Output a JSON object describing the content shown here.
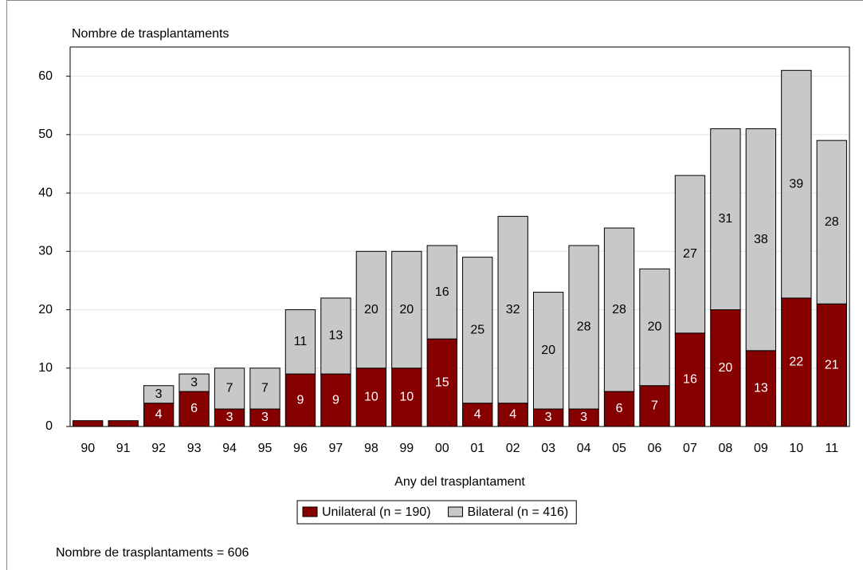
{
  "chart_data": {
    "type": "stacked-bar",
    "y_label": "Nombre de trasplantaments",
    "x_label": "Any del trasplantament",
    "footnote": "Nombre de trasplantaments = 606",
    "categories": [
      "90",
      "91",
      "92",
      "93",
      "94",
      "95",
      "96",
      "97",
      "98",
      "99",
      "00",
      "01",
      "02",
      "03",
      "04",
      "05",
      "06",
      "07",
      "08",
      "09",
      "10",
      "11"
    ],
    "series": [
      {
        "name": "Unilateral (n = 190)",
        "color": "#870000",
        "label_color": "#ffffff",
        "values": [
          1,
          1,
          4,
          6,
          3,
          3,
          9,
          9,
          10,
          10,
          15,
          4,
          4,
          3,
          3,
          6,
          7,
          16,
          20,
          13,
          22,
          21
        ]
      },
      {
        "name": "Bilateral (n = 416)",
        "color": "#c8c8c8",
        "label_color": "#000000",
        "values": [
          0,
          0,
          3,
          3,
          7,
          7,
          11,
          13,
          20,
          20,
          16,
          25,
          32,
          20,
          28,
          28,
          20,
          27,
          31,
          38,
          39,
          28
        ]
      }
    ],
    "ylim": [
      0,
      65
    ],
    "yticks": [
      0,
      10,
      20,
      30,
      40,
      50,
      60
    ],
    "grid": true
  }
}
